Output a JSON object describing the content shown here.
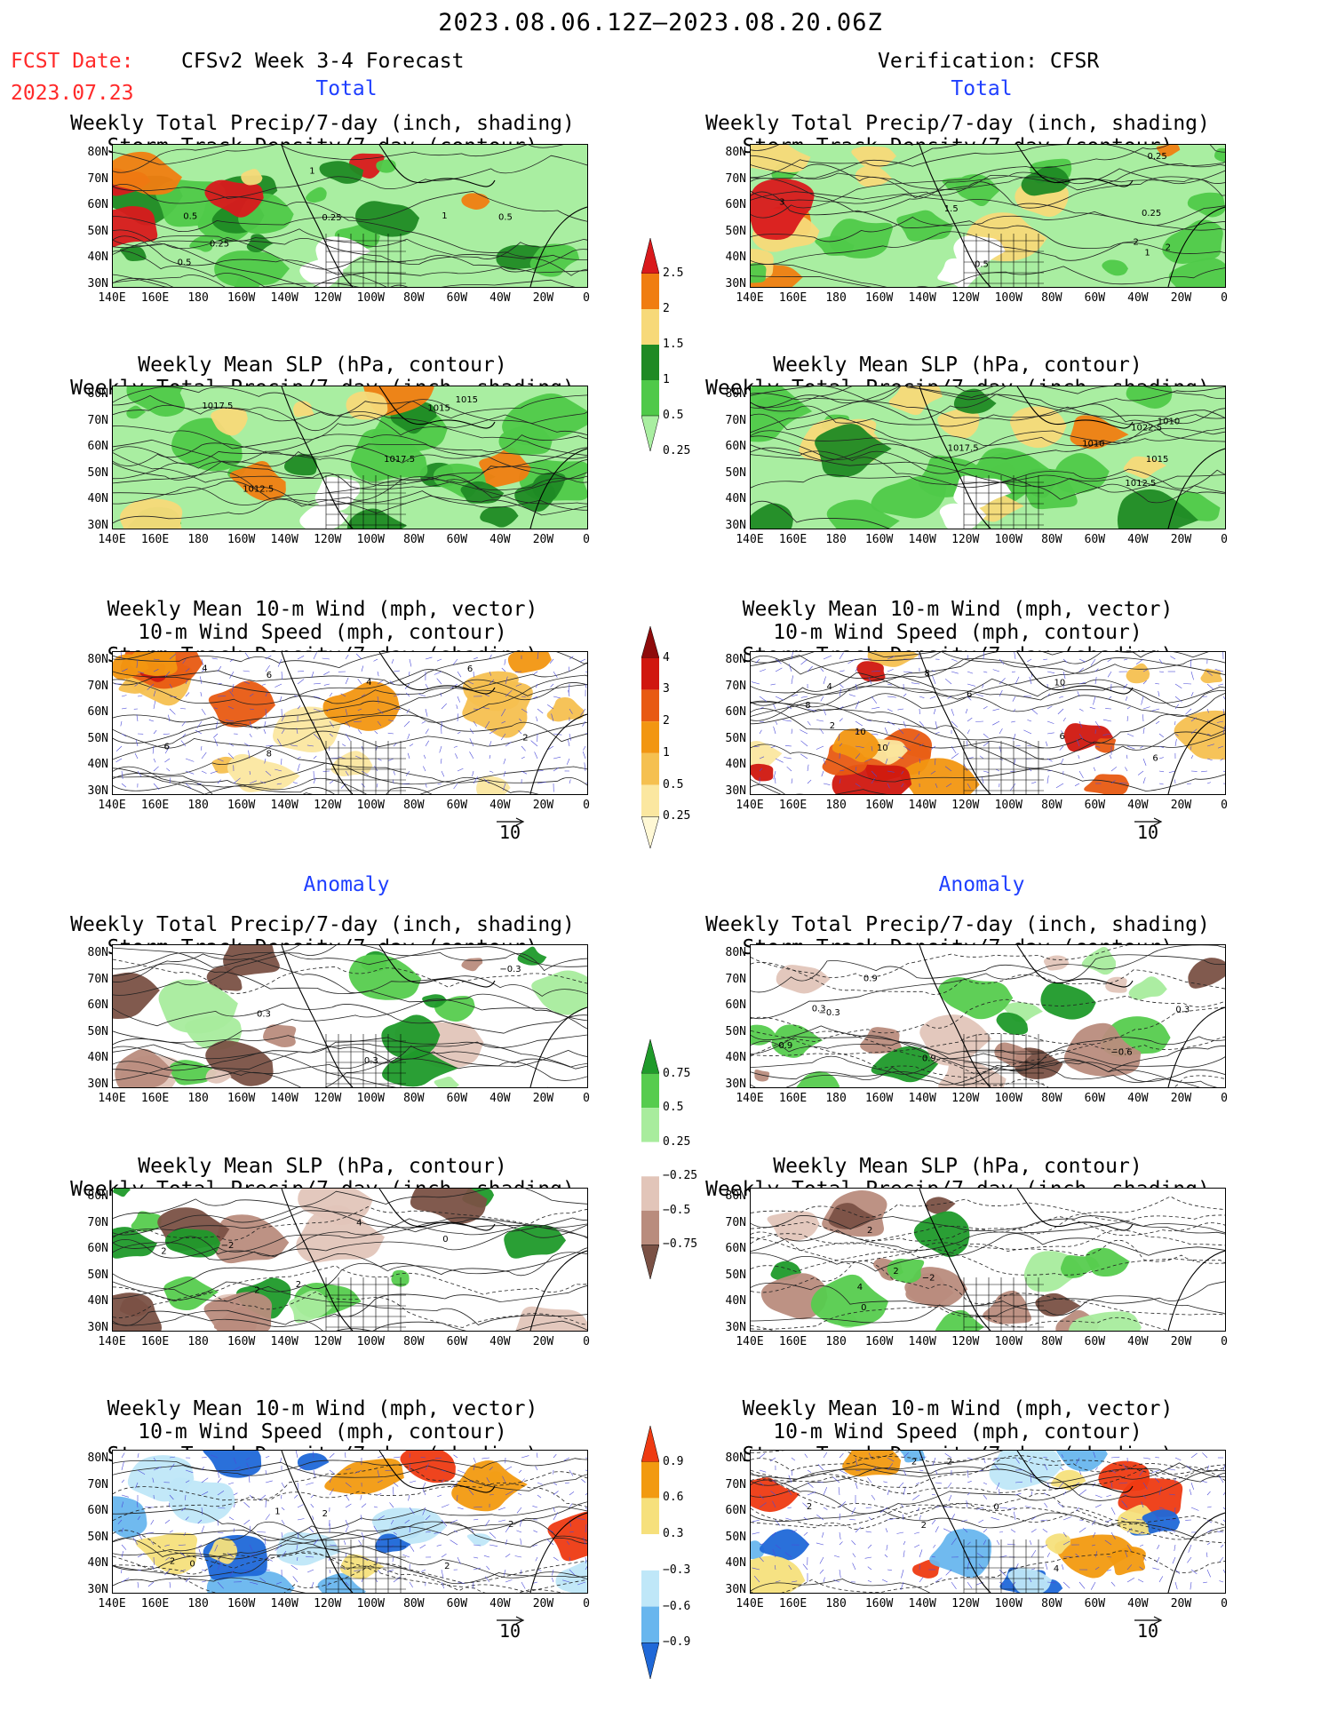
{
  "header": {
    "period": "2023.08.06.12Z–2023.08.20.06Z",
    "fcst_label": "FCST Date:",
    "fcst_date": "2023.07.23",
    "model": "CFSv2 Week 3-4 Forecast",
    "verification": "Verification: CFSR"
  },
  "sections": {
    "total": "Total",
    "anomaly": "Anomaly"
  },
  "panel_titles": {
    "precip_storm": [
      "Weekly Total Precip/7-day (inch, shading)",
      "Storm Track Density/7-day (contour)"
    ],
    "slp_precip": [
      "Weekly Mean SLP (hPa, contour)",
      "Weekly Total Precip/7-day (inch, shading)"
    ],
    "wind_storm": [
      "Weekly Mean 10-m Wind (mph, vector)",
      "10-m Wind Speed (mph, contour)",
      "Storm Track Density/7-day (shading)"
    ]
  },
  "axes": {
    "lat_labels": [
      "80N",
      "70N",
      "60N",
      "50N",
      "40N",
      "30N"
    ],
    "lon_labels": [
      "140E",
      "160E",
      "180",
      "160W",
      "140W",
      "120W",
      "100W",
      "80W",
      "60W",
      "40W",
      "20W",
      "0"
    ]
  },
  "vector_reference": "10",
  "colorbars": {
    "precip_total": {
      "labels": [
        "2.5",
        "2",
        "1.5",
        "1",
        "0.5",
        "0.25"
      ],
      "colors": [
        "#d9191c",
        "#f07d11",
        "#f7d979",
        "#1f8a24",
        "#4fc949",
        "#a9eea1"
      ]
    },
    "storm_total": {
      "labels": [
        "4",
        "3",
        "2",
        "1",
        "0.5",
        "0.25"
      ],
      "colors": [
        "#8e0b0b",
        "#d0170f",
        "#e85a12",
        "#f29611",
        "#f5c050",
        "#fbe7a0",
        "#fff8d5"
      ]
    },
    "precip_anom": {
      "labels": [
        "0.75",
        "0.5",
        "0.25",
        "−0.25",
        "−0.5",
        "−0.75"
      ],
      "colors": [
        "#1f9a2a",
        "#56cc4e",
        "#a8ec9d",
        "#ffffff",
        "#e2c5b9",
        "#b98c7d",
        "#7a5145"
      ]
    },
    "storm_anom": {
      "labels": [
        "0.9",
        "0.6",
        "0.3",
        "−0.3",
        "−0.6",
        "−0.9"
      ],
      "colors": [
        "#ee3a12",
        "#f29a10",
        "#f6e07c",
        "#ffffff",
        "#bfe7f8",
        "#68b6ee",
        "#1f68d8"
      ]
    }
  },
  "contour_labels": {
    "fc_precip_storm": [
      "0.25",
      "0.5",
      "0.5",
      "0.25",
      "0.5",
      "1",
      "1"
    ],
    "ob_precip_storm": [
      "0.25",
      "3",
      "2",
      "0.5",
      "0.25",
      "1",
      "2",
      "1.5"
    ],
    "fc_slp_total": [
      "1017.5",
      "1015",
      "1012.5",
      "1015",
      "1017.5"
    ],
    "ob_slp_total": [
      "1010",
      "1015",
      "1017.5",
      "1010",
      "1012.5",
      "1022.5"
    ],
    "fc_wind_total": [
      "4",
      "2",
      "4",
      "6",
      "6",
      "6",
      "8"
    ],
    "ob_wind_total": [
      "4",
      "6",
      "6",
      "10",
      "10",
      "2",
      "10",
      "8",
      "6",
      "8"
    ],
    "fc_precip_anom": [
      "0.3",
      "0.3",
      "−0.3"
    ],
    "ob_precip_anom": [
      "0.9",
      "0.3",
      "0.9",
      "0.3",
      "0.9",
      "−0.6",
      "−0.3"
    ],
    "fc_slp_anom": [
      "4",
      "2",
      "0",
      "2",
      "2",
      "−2"
    ],
    "ob_slp_anom": [
      "4",
      "2",
      "2",
      "0",
      "−2"
    ],
    "fc_wind_anom": [
      "0",
      "2",
      "2",
      "2",
      "1",
      "2"
    ],
    "ob_wind_anom": [
      "2",
      "2",
      "4",
      "2",
      "0",
      "2"
    ]
  }
}
